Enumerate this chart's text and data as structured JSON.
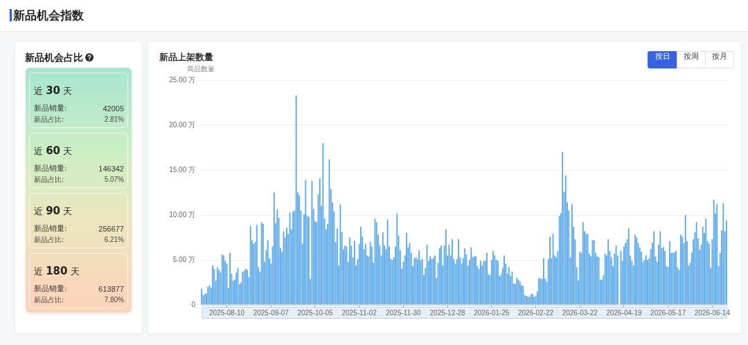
{
  "chart_data": [
    {
      "type": "other",
      "title": "新品机会指数"
    },
    {
      "type": "other",
      "title": "新品机会占比",
      "annotations": [
        "近 30 天",
        "新品销量:",
        "42005",
        "新品占比:",
        "2.81%",
        "近 60 天",
        "新品销量:",
        "146342",
        "新品占比:",
        "5.07%",
        "近 90 天",
        "新品销量:",
        "256677",
        "新品占比:",
        "6.21%",
        "近 180 天",
        "新品销量:",
        "613877",
        "新品占比:",
        "7.80%"
      ]
    },
    {
      "type": "bar",
      "title": "新品上架数量",
      "ylabel": "商品数量",
      "annotations": [
        "按日",
        "按周",
        "按月"
      ],
      "color": "#55a7f2",
      "ylim": [
        0,
        25
      ],
      "yticks": [
        0,
        {
          "value": 5,
          "label": "5.00 万"
        },
        {
          "value": 10,
          "label": "10.00 万"
        },
        {
          "value": 15,
          "label": "15.00 万"
        },
        {
          "value": 20,
          "label": "20.00 万"
        },
        {
          "value": 25,
          "label": "25.00 万"
        }
      ],
      "grid": "y",
      "categories": [
        null,
        null,
        null,
        null,
        null,
        null,
        null,
        null,
        null,
        null,
        null,
        null,
        null,
        null,
        null,
        null,
        "2025-08-10",
        null,
        null,
        null,
        null,
        null,
        null,
        null,
        null,
        null,
        null,
        null,
        null,
        null,
        null,
        null,
        null,
        null,
        null,
        null,
        null,
        null,
        null,
        null,
        null,
        null,
        null,
        null,
        "2025-09-07",
        null,
        null,
        null,
        null,
        null,
        null,
        null,
        null,
        null,
        null,
        null,
        null,
        null,
        null,
        null,
        null,
        null,
        null,
        null,
        null,
        null,
        null,
        null,
        null,
        null,
        null,
        null,
        "2025-10-05",
        null,
        null,
        null,
        null,
        null,
        null,
        null,
        null,
        null,
        null,
        null,
        null,
        null,
        null,
        null,
        null,
        null,
        null,
        null,
        null,
        null,
        null,
        null,
        null,
        null,
        null,
        null,
        "2025-11-02",
        null,
        null,
        null,
        null,
        null,
        null,
        null,
        null,
        null,
        null,
        null,
        null,
        null,
        null,
        null,
        null,
        null,
        null,
        null,
        null,
        null,
        null,
        null,
        null,
        null,
        null,
        null,
        "2025-11-30",
        null,
        null,
        null,
        null,
        null,
        null,
        null,
        null,
        null,
        null,
        null,
        null,
        null,
        null,
        null,
        null,
        null,
        null,
        null,
        null,
        null,
        null,
        null,
        null,
        null,
        null,
        null,
        "2025-12-28",
        null,
        null,
        null,
        null,
        null,
        null,
        null,
        null,
        null,
        null,
        null,
        null,
        null,
        null,
        null,
        null,
        null,
        null,
        null,
        null,
        null,
        null,
        null,
        null,
        null,
        null,
        null,
        "2026-01-25",
        null,
        null,
        null,
        null,
        null,
        null,
        null,
        null,
        null,
        null,
        null,
        null,
        null,
        null,
        null,
        null,
        null,
        null,
        null,
        null,
        null,
        null,
        null,
        null,
        null,
        null,
        null,
        "2026-02-22",
        null,
        null,
        null,
        null,
        null,
        null,
        null,
        null,
        null,
        null,
        null,
        null,
        null,
        null,
        null,
        null,
        null,
        null,
        null,
        null,
        null,
        null,
        null,
        null,
        null,
        null,
        null,
        "2026-03-22",
        null,
        null,
        null,
        null,
        null,
        null,
        null,
        null,
        null,
        null,
        null,
        null,
        null,
        null,
        null,
        null,
        null,
        null,
        null,
        null,
        null,
        null,
        null,
        null,
        null,
        null,
        null,
        "2026-04-19",
        null,
        null,
        null,
        null,
        null,
        null,
        null,
        null,
        null,
        null,
        null,
        null,
        null,
        null,
        null,
        null,
        null,
        null,
        null,
        null,
        null,
        null,
        null,
        null,
        null,
        null,
        null,
        "2026-05-17",
        null,
        null,
        null,
        null,
        null,
        null,
        null,
        null,
        null,
        null,
        null,
        null,
        null,
        null,
        null,
        null,
        null,
        null,
        null,
        null,
        null,
        null,
        null,
        null,
        null,
        null,
        null,
        "2026-06-14",
        null,
        null,
        null,
        null,
        null,
        null,
        null,
        null,
        null
      ],
      "values": [
        1.8,
        1.1,
        1.2,
        1.3,
        2.0,
        2.2,
        1.9,
        4.4,
        4.0,
        2.7,
        4.2,
        3.9,
        3.6,
        5.6,
        5.5,
        4.9,
        4.6,
        1.9,
        5.8,
        3.5,
        2.7,
        2.8,
        3.6,
        4.1,
        2.3,
        2.5,
        3.7,
        3.8,
        4.0,
        3.9,
        3.1,
        8.8,
        7.2,
        6.8,
        7.0,
        8.9,
        4.2,
        3.7,
        9.2,
        9.0,
        4.8,
        6.1,
        7.2,
        5.2,
        4.6,
        6.5,
        12.5,
        9.1,
        10.6,
        9.7,
        6.3,
        5.9,
        8.2,
        7.5,
        8.6,
        7.9,
        10.3,
        8.4,
        10.4,
        10.5,
        23.3,
        12.5,
        12.2,
        10.5,
        6.8,
        10.1,
        13.9,
        9.9,
        9.8,
        2.9,
        13.8,
        10.7,
        9.3,
        9.2,
        12.3,
        14.1,
        11.0,
        18.0,
        9.6,
        8.4,
        9.0,
        16.2,
        12.9,
        11.4,
        10.4,
        7.0,
        8.5,
        4.4,
        11.2,
        8.1,
        6.2,
        6.6,
        6.5,
        4.8,
        7.5,
        6.6,
        5.3,
        7.1,
        4.4,
        5.1,
        6.8,
        8.7,
        7.6,
        6.2,
        6.8,
        5.5,
        5.4,
        7.0,
        6.5,
        4.7,
        9.6,
        9.2,
        7.8,
        6.6,
        5.5,
        8.1,
        6.6,
        6.2,
        9.5,
        6.5,
        5.1,
        5.0,
        5.3,
        6.5,
        10.2,
        7.7,
        6.1,
        4.0,
        4.8,
        5.5,
        8.0,
        6.4,
        6.9,
        5.8,
        4.3,
        5.2,
        5.3,
        5.1,
        6.1,
        5.0,
        5.1,
        3.3,
        4.1,
        6.7,
        4.9,
        5.4,
        5.1,
        5.2,
        5.5,
        3.0,
        4.7,
        6.3,
        6.6,
        4.4,
        6.6,
        8.4,
        5.5,
        6.7,
        5.5,
        7.3,
        5.1,
        4.6,
        5.1,
        7.3,
        5.3,
        4.6,
        5.2,
        6.3,
        5.6,
        4.4,
        5.0,
        6.4,
        5.3,
        5.4,
        5.4,
        4.3,
        4.0,
        4.9,
        4.4,
        4.9,
        4.9,
        5.8,
        3.4,
        3.3,
        5.0,
        6.0,
        5.5,
        5.0,
        4.9,
        3.2,
        3.4,
        4.1,
        5.5,
        4.6,
        3.5,
        4.2,
        3.2,
        3.7,
        2.4,
        2.3,
        3.0,
        2.8,
        2.6,
        2.2,
        2.1,
        1.1,
        1.0,
        0.9,
        0.9,
        1.2,
        1.2,
        0.9,
        1.0,
        1.5,
        3.0,
        2.9,
        2.9,
        5.2,
        2.9,
        2.6,
        5.1,
        7.6,
        5.2,
        7.9,
        5.5,
        5.3,
        6.0,
        9.9,
        10.2,
        17.0,
        12.6,
        14.4,
        11.4,
        10.5,
        5.3,
        11.2,
        8.7,
        7.3,
        4.2,
        2.7,
        5.9,
        5.8,
        9.2,
        8.2,
        7.9,
        7.9,
        5.7,
        5.4,
        7.2,
        7.2,
        5.8,
        5.4,
        5.3,
        2.8,
        2.8,
        3.3,
        5.7,
        5.5,
        7.3,
        6.0,
        5.3,
        4.3,
        5.7,
        6.6,
        5.5,
        null,
        6.0,
        4.9,
        6.5,
        6.9,
        7.3,
        8.5,
        5.5,
        4.9,
        4.4,
        7.8,
        7.5,
        6.9,
        6.4,
        5.9,
        4.8,
        5.0,
        5.5,
        5.0,
        5.2,
        6.2,
        6.9,
        8.2,
        5.4,
        4.8,
        6.7,
        8.2,
        6.3,
        6.4,
        6.0,
        4.3,
        4.2,
        7.1,
        5.8,
        5.8,
        5.8,
        6.0,
        4.2,
        3.9,
        7.8,
        7.6,
        6.9,
        10.0,
        7.1,
        4.4,
        4.7,
        5.8,
        7.3,
        8.1,
        9.2,
        7.4,
        6.1,
        6.7,
        8.7,
        8.0,
        9.6,
        7.1,
        6.8,
        4.1,
        7.3,
        11.7,
        10.2,
        11.2,
        4.3,
        5.8,
        8.3,
        11.3,
        8.2,
        9.4
      ]
    }
  ]
}
